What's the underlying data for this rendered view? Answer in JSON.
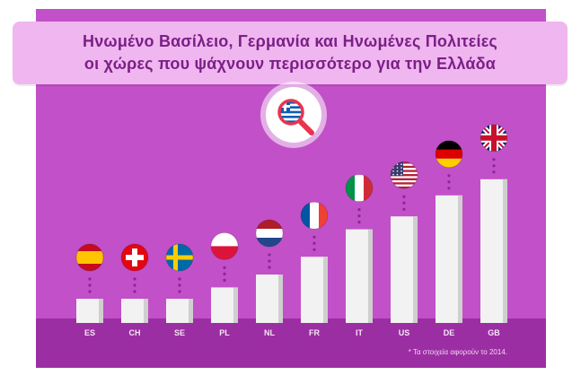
{
  "title_lines": [
    "Ηνωμένο Βασίλειο, Γερμανία και Ηνωμένες Πολιτείες",
    "οι χώρες που ψάχνουν περισσότερο για την Ελλάδα"
  ],
  "footnote": "* Τα στοιχεία αφορούν το 2014.",
  "search_icon": {
    "icon": "magnifier-greek-flag-icon",
    "ring_color": "#e9334f"
  },
  "colors": {
    "panel": "#c250c8",
    "floor": "#9c2ea3",
    "title_bg": "#efb6ef",
    "title_text": "#7b1f86",
    "bar_face": "#f2f2f2",
    "bar_side": "#cfcfcf",
    "dots": "#8d2592"
  },
  "chart_data": {
    "type": "bar",
    "title": "Ηνωμένο Βασίλειο, Γερμανία και Ηνωμένες Πολιτείες οι χώρες που ψάχνουν περισσότερο για την Ελλάδα",
    "xlabel": "",
    "ylabel": "",
    "categories": [
      "ES",
      "CH",
      "SE",
      "PL",
      "NL",
      "FR",
      "IT",
      "US",
      "DE",
      "GB"
    ],
    "values": [
      15,
      15,
      15,
      22,
      30,
      41,
      58,
      66,
      79,
      89
    ],
    "flags": [
      "es",
      "ch",
      "se",
      "pl",
      "nl",
      "fr",
      "it",
      "us",
      "de",
      "gb"
    ],
    "ylim": [
      0,
      100
    ],
    "axis_values_shown": false,
    "grid": false,
    "legend": "none"
  }
}
